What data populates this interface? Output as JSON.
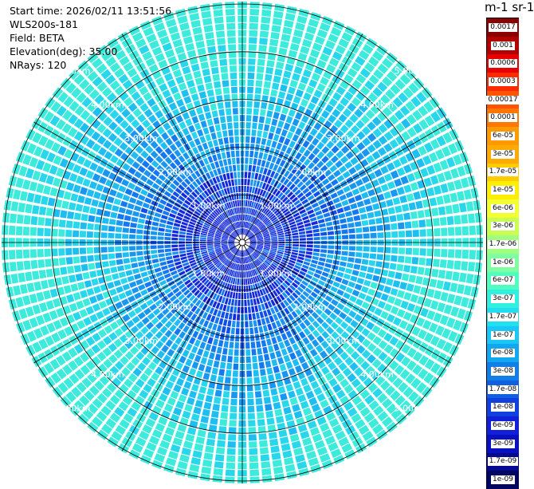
{
  "header": {
    "start_time": "Start time: 2026/02/11 13:51:56",
    "instrument": "WLS200s-181",
    "field": "Field: BETA",
    "elevation": "Elevation(deg): 35.00",
    "nrays": "NRays: 120"
  },
  "colorbar": {
    "title": "m-1 sr-1",
    "labels": [
      "0.0017",
      "0.001",
      "0.0006",
      "0.0003",
      "0.00017",
      "0.0001",
      "6e-05",
      "3e-05",
      "1.7e-05",
      "1e-05",
      "6e-06",
      "3e-06",
      "1.7e-06",
      "1e-06",
      "6e-07",
      "3e-07",
      "1.7e-07",
      "1e-07",
      "6e-08",
      "3e-08",
      "1.7e-08",
      "1e-08",
      "6e-09",
      "3e-09",
      "1.7e-09",
      "1e-09"
    ],
    "colors": [
      "#8b0000",
      "#b30000",
      "#e60000",
      "#ff2a00",
      "#ff5500",
      "#ff7700",
      "#ff9900",
      "#ffaa00",
      "#ffcc00",
      "#ffee00",
      "#f2ff30",
      "#c8ff50",
      "#a0ff80",
      "#7fff9f",
      "#50ffc0",
      "#30f0e0",
      "#20e0f0",
      "#18c8f8",
      "#10a8f0",
      "#1080e8",
      "#1060e0",
      "#1040e0",
      "#1020d8",
      "#0810c0",
      "#050890",
      "#030660"
    ]
  },
  "plot": {
    "rays": 120,
    "ring_labels": [
      "1.00km",
      "2.00km",
      "3.00km",
      "4.00km",
      "5.00km"
    ]
  }
}
